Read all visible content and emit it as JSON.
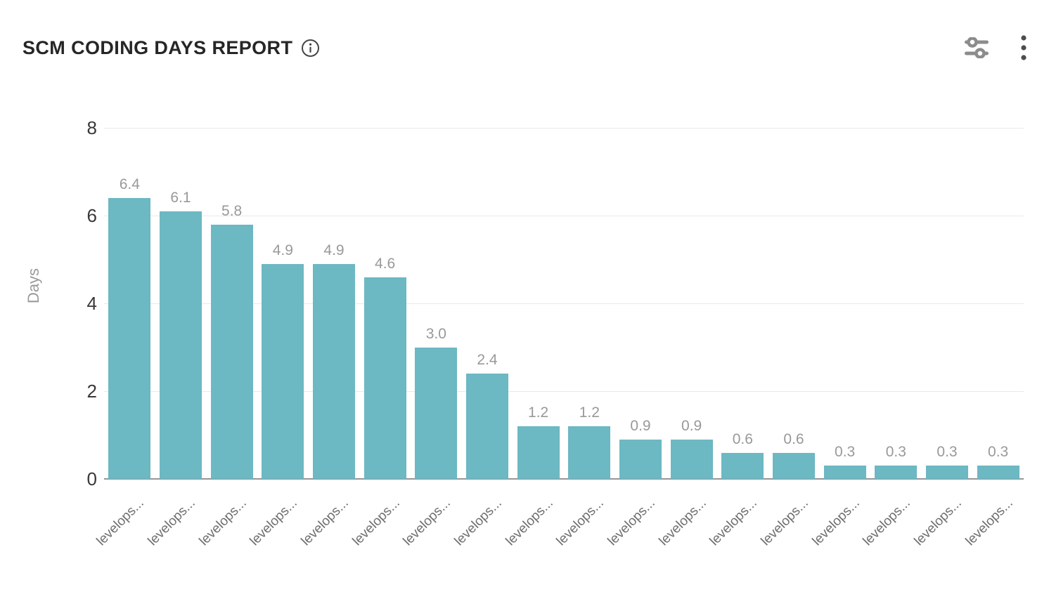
{
  "header": {
    "title": "SCM CODING DAYS REPORT",
    "icons": {
      "info": "info-circle-icon",
      "filters": "sliders-icon",
      "menu": "kebab-menu-icon"
    }
  },
  "colors": {
    "bar": "#6CB8C3",
    "title": "#262626",
    "tick_label": "#383838",
    "value_label": "#999999",
    "x_label": "#6e6e6e",
    "y_axis_title": "#9a9a9a",
    "gridline": "#e9e9e9",
    "axis_line": "#969696",
    "icon_gray": "#8c8c8c",
    "kebab_gray": "#4d4d4d"
  },
  "chart_data": {
    "type": "bar",
    "title": "SCM CODING DAYS REPORT",
    "xlabel": "",
    "ylabel": "Days",
    "ylim": [
      0,
      8
    ],
    "yticks": [
      0,
      2,
      4,
      6,
      8
    ],
    "grid": true,
    "legend": "none",
    "bar_color": "#6CB8C3",
    "categories": [
      "levelops...",
      "levelops...",
      "levelops...",
      "levelops...",
      "levelops...",
      "levelops...",
      "levelops...",
      "levelops...",
      "levelops...",
      "levelops...",
      "levelops...",
      "levelops...",
      "levelops...",
      "levelops...",
      "levelops...",
      "levelops...",
      "levelops...",
      "levelops..."
    ],
    "values": [
      6.4,
      6.1,
      5.8,
      4.9,
      4.9,
      4.6,
      3.0,
      2.4,
      1.2,
      1.2,
      0.9,
      0.9,
      0.6,
      0.6,
      0.3,
      0.3,
      0.3,
      0.3
    ],
    "value_labels": [
      "6.4",
      "6.1",
      "5.8",
      "4.9",
      "4.9",
      "4.6",
      "3.0",
      "2.4",
      "1.2",
      "1.2",
      "0.9",
      "0.9",
      "0.6",
      "0.6",
      "0.3",
      "0.3",
      "0.3",
      "0.3"
    ]
  }
}
